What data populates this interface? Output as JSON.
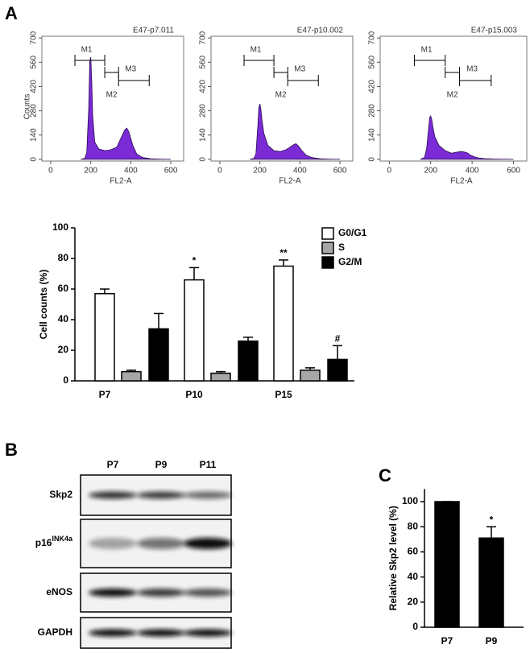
{
  "panel_labels": [
    "A",
    "B",
    "C"
  ],
  "chart_data": [
    {
      "type": "area",
      "title": "E47-p7.011",
      "xlabel": "FL2-A",
      "ylabel": "Counts",
      "x": [
        150,
        170,
        180,
        190,
        195,
        200,
        205,
        210,
        220,
        240,
        270,
        300,
        330,
        350,
        370,
        380,
        390,
        410,
        430,
        460,
        500,
        550,
        600
      ],
      "values": [
        0,
        5,
        40,
        300,
        560,
        590,
        450,
        250,
        100,
        60,
        50,
        55,
        70,
        120,
        170,
        180,
        160,
        80,
        30,
        10,
        3,
        1,
        0
      ],
      "color": "#7a2bd6",
      "xlim": [
        -44,
        664
      ],
      "xticks": [
        0,
        200,
        400,
        600
      ],
      "ylim": [
        -10,
        710
      ],
      "yticks": [
        0,
        140,
        280,
        420,
        560,
        700
      ],
      "gates": [
        {
          "label": "M1",
          "range": [
            121,
            270
          ]
        },
        {
          "label": "M2",
          "range": [
            270,
            339
          ]
        },
        {
          "label": "M3",
          "range": [
            339,
            492
          ]
        }
      ]
    },
    {
      "type": "area",
      "title": "E47-p10.002",
      "xlabel": "FL2-A",
      "x": [
        150,
        170,
        180,
        190,
        195,
        200,
        205,
        210,
        220,
        240,
        270,
        300,
        330,
        350,
        370,
        380,
        390,
        410,
        430,
        460,
        500,
        550,
        600
      ],
      "values": [
        0,
        5,
        30,
        200,
        300,
        320,
        290,
        230,
        150,
        80,
        50,
        45,
        55,
        70,
        85,
        90,
        80,
        50,
        25,
        10,
        3,
        1,
        0
      ],
      "color": "#7a2bd6",
      "xlim": [
        -44,
        664
      ],
      "xticks": [
        0,
        200,
        400,
        600
      ],
      "ylim": [
        -10,
        710
      ],
      "yticks": [
        0,
        140,
        280,
        420,
        560,
        700
      ],
      "gates": [
        {
          "label": "M1",
          "range": [
            121,
            270
          ]
        },
        {
          "label": "M2",
          "range": [
            270,
            339
          ]
        },
        {
          "label": "M3",
          "range": [
            339,
            492
          ]
        }
      ]
    },
    {
      "type": "area",
      "title": "E47-p15.003",
      "xlabel": "FL2-A",
      "x": [
        150,
        170,
        180,
        190,
        195,
        200,
        205,
        210,
        220,
        240,
        270,
        300,
        330,
        350,
        370,
        380,
        390,
        410,
        430,
        460,
        500,
        550,
        600
      ],
      "values": [
        0,
        10,
        60,
        180,
        240,
        250,
        230,
        190,
        130,
        80,
        50,
        35,
        42,
        45,
        40,
        35,
        25,
        15,
        8,
        4,
        2,
        1,
        0
      ],
      "color": "#7a2bd6",
      "xlim": [
        -44,
        664
      ],
      "xticks": [
        0,
        200,
        400,
        600
      ],
      "ylim": [
        -10,
        710
      ],
      "yticks": [
        0,
        140,
        280,
        420,
        560,
        700
      ],
      "gates": [
        {
          "label": "M1",
          "range": [
            121,
            270
          ]
        },
        {
          "label": "M2",
          "range": [
            270,
            339
          ]
        },
        {
          "label": "M3",
          "range": [
            339,
            492
          ]
        }
      ]
    },
    {
      "type": "bar",
      "ylabel": "Cell counts (%)",
      "categories": [
        "P7",
        "P10",
        "P15"
      ],
      "series": [
        {
          "name": "G0/G1",
          "color": "#ffffff",
          "values": [
            57,
            66,
            75
          ],
          "errors": [
            3,
            8,
            4
          ],
          "annotations": [
            null,
            "*",
            "**"
          ]
        },
        {
          "name": "S",
          "color": "#a6a6a6",
          "values": [
            6,
            5,
            7
          ],
          "errors": [
            1,
            1,
            1.5
          ],
          "annotations": [
            null,
            null,
            null
          ]
        },
        {
          "name": "G2/M",
          "color": "#000000",
          "values": [
            34,
            26,
            14
          ],
          "errors": [
            10,
            2.5,
            9
          ],
          "annotations": [
            null,
            null,
            "#"
          ]
        }
      ],
      "ylim": [
        0,
        100
      ],
      "yticks": [
        0,
        20,
        40,
        60,
        80,
        100
      ],
      "legend": "upper right"
    },
    {
      "type": "bar",
      "ylabel": "Relative Skp2 level (%)",
      "categories": [
        "P7",
        "P9"
      ],
      "series": [
        {
          "color": "#000000",
          "values": [
            100,
            71
          ],
          "errors": [
            0,
            9
          ],
          "annotations": [
            null,
            "*"
          ]
        }
      ],
      "ylim": [
        0,
        110
      ],
      "yticks": [
        0,
        20,
        40,
        60,
        80,
        100
      ]
    }
  ],
  "blot": {
    "lanes": [
      "P7",
      "P9",
      "P11"
    ],
    "rows": [
      {
        "name": "Skp2"
      },
      {
        "name": "p16",
        "superscript": "INK4a"
      },
      {
        "name": "eNOS"
      },
      {
        "name": "GAPDH"
      }
    ]
  }
}
